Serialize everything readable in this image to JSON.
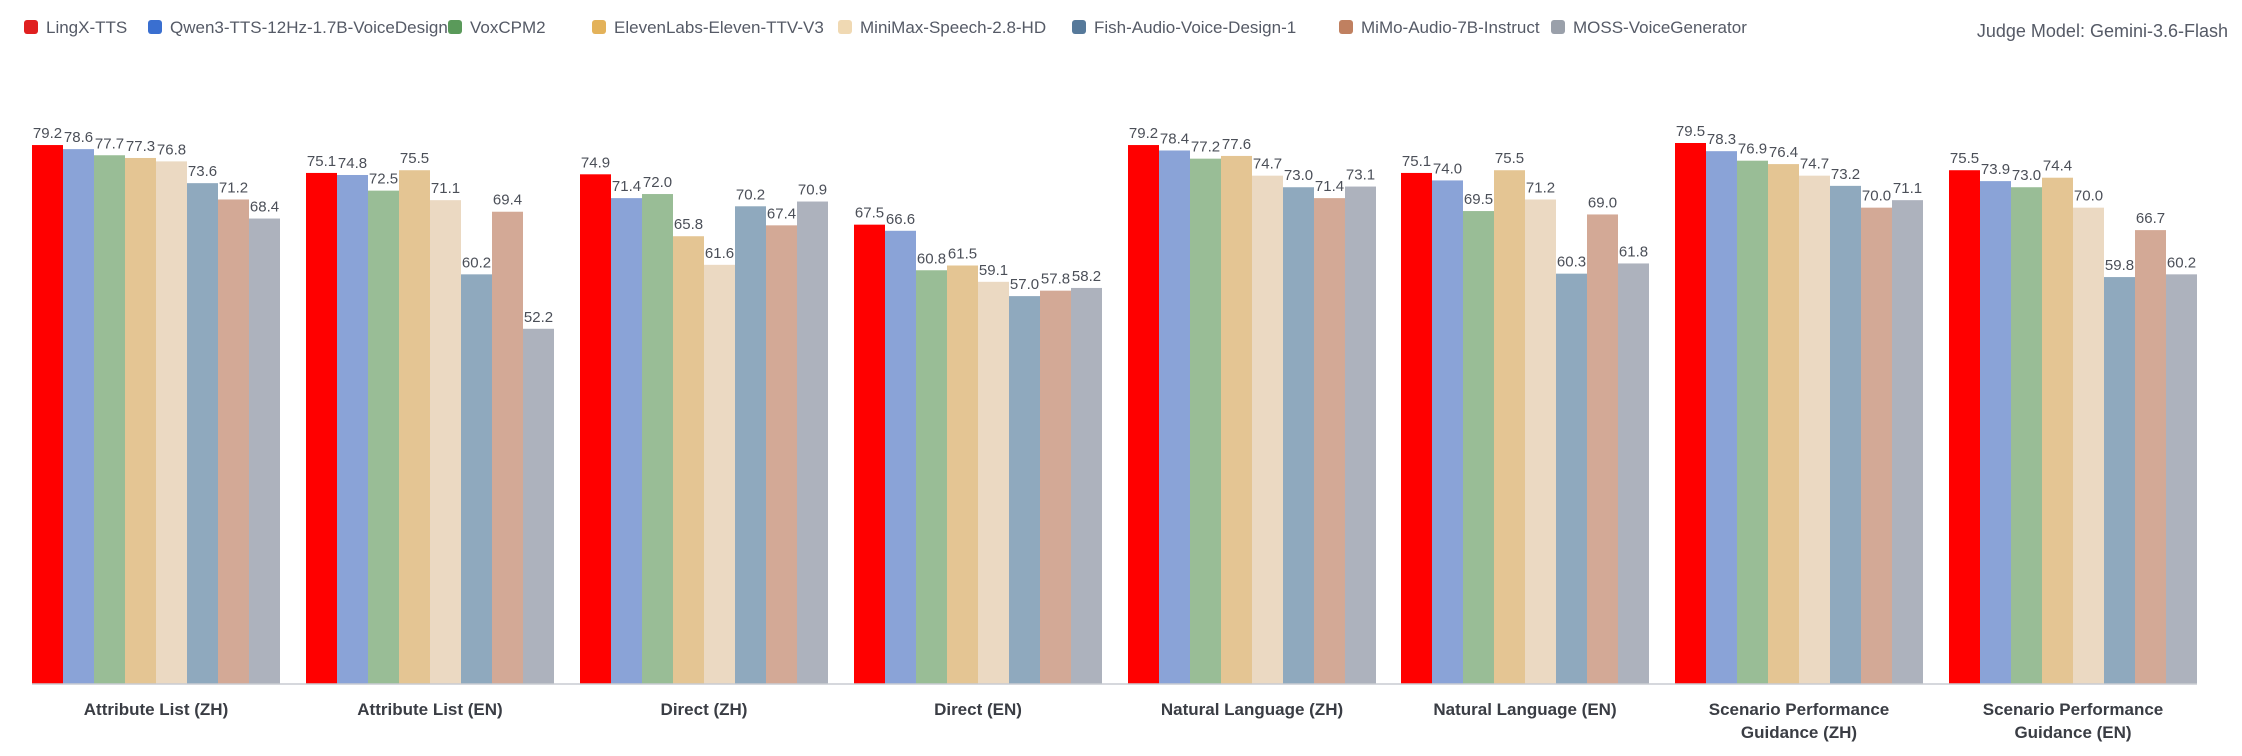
{
  "judge_label": "Judge Model: Gemini-3.6-Flash",
  "series_colors": [
    "#ff0000",
    "#8aa3d7",
    "#99bd96",
    "#e4c593",
    "#ebd9c2",
    "#8fa9be",
    "#d3a996",
    "#adb2bd"
  ],
  "legend_colors": [
    "#e02020",
    "#3a6fd0",
    "#5a9a5a",
    "#e3b25a",
    "#f0d9b3",
    "#56799a",
    "#c08060",
    "#9aa0aa"
  ],
  "chart_data": {
    "type": "bar",
    "title": "",
    "xlabel": "",
    "ylabel": "",
    "ylim": [
      0,
      80
    ],
    "grid": false,
    "legend_position": "top-left",
    "categories": [
      [
        "Attribute List (ZH)"
      ],
      [
        "Attribute List (EN)"
      ],
      [
        "Direct (ZH)"
      ],
      [
        "Direct (EN)"
      ],
      [
        "Natural Language (ZH)"
      ],
      [
        "Natural Language (EN)"
      ],
      [
        "Scenario Performance",
        "Guidance (ZH)"
      ],
      [
        "Scenario Performance",
        "Guidance (EN)"
      ]
    ],
    "series": [
      {
        "name": "LingX-TTS",
        "values": [
          79.2,
          75.1,
          74.9,
          67.5,
          79.2,
          75.1,
          79.5,
          75.5
        ]
      },
      {
        "name": "Qwen3-TTS-12Hz-1.7B-VoiceDesign",
        "values": [
          78.6,
          74.8,
          71.4,
          66.6,
          78.4,
          74.0,
          78.3,
          73.9
        ]
      },
      {
        "name": "VoxCPM2",
        "values": [
          77.7,
          72.5,
          72.0,
          60.8,
          77.2,
          69.5,
          76.9,
          73.0
        ]
      },
      {
        "name": "ElevenLabs-Eleven-TTV-V3",
        "values": [
          77.3,
          75.5,
          65.8,
          61.5,
          77.6,
          75.5,
          76.4,
          74.4
        ]
      },
      {
        "name": "MiniMax-Speech-2.8-HD",
        "values": [
          76.8,
          71.1,
          61.6,
          59.1,
          74.7,
          71.2,
          74.7,
          70.0
        ]
      },
      {
        "name": "Fish-Audio-Voice-Design-1",
        "values": [
          73.6,
          60.2,
          70.2,
          57.0,
          73.0,
          60.3,
          73.2,
          59.8
        ]
      },
      {
        "name": "MiMo-Audio-7B-Instruct",
        "values": [
          71.2,
          69.4,
          67.4,
          57.8,
          71.4,
          69.0,
          70.0,
          66.7
        ]
      },
      {
        "name": "MOSS-VoiceGenerator",
        "values": [
          68.4,
          52.2,
          70.9,
          58.2,
          73.1,
          61.8,
          71.1,
          60.2
        ]
      }
    ]
  }
}
